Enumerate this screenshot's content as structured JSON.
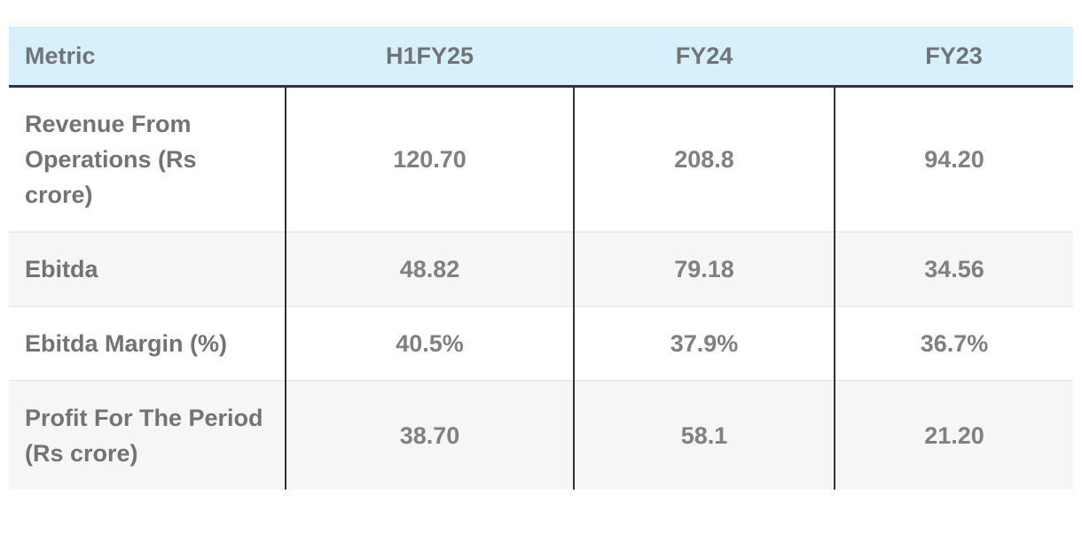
{
  "table": {
    "columns": [
      "Metric",
      "H1FY25",
      "FY24",
      "FY23"
    ],
    "rows": [
      {
        "metric": "Revenue From Operations (Rs crore)",
        "values": [
          "120.70",
          "208.8",
          "94.20"
        ]
      },
      {
        "metric": "Ebitda",
        "values": [
          "48.82",
          "79.18",
          "34.56"
        ]
      },
      {
        "metric": "Ebitda Margin (%)",
        "values": [
          "40.5%",
          "37.9%",
          "36.7%"
        ]
      },
      {
        "metric": "Profit For The Period (Rs crore)",
        "values": [
          "38.70",
          "58.1",
          "21.20"
        ]
      }
    ]
  },
  "colors": {
    "header_bg": "#d7f0fb",
    "header_bottom_border": "#303436",
    "column_divider": "#303436",
    "row_divider": "#ececec",
    "alt_row_bg": "#f6f6f6",
    "label_text": "#707477",
    "value_text": "#7e8184",
    "page_bg": "#ffffff"
  },
  "chart_data": {
    "type": "table",
    "title": "",
    "columns": [
      "Metric",
      "H1FY25",
      "FY24",
      "FY23"
    ],
    "rows": [
      [
        "Revenue From Operations (Rs crore)",
        "120.70",
        "208.8",
        "94.20"
      ],
      [
        "Ebitda",
        "48.82",
        "79.18",
        "34.56"
      ],
      [
        "Ebitda Margin (%)",
        "40.5%",
        "37.9%",
        "36.7%"
      ],
      [
        "Profit For The Period (Rs crore)",
        "38.70",
        "58.1",
        "21.20"
      ]
    ],
    "layout_hints": {
      "header_background": "#d7f0fb",
      "zebra_striping": true,
      "column_alignment": [
        "left",
        "center",
        "center",
        "center"
      ]
    }
  }
}
